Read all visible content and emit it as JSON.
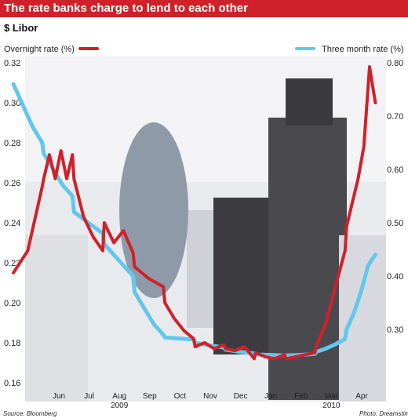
{
  "header": {
    "title": "The rate banks charge to lend to each other",
    "subtitle": "$ Libor"
  },
  "footer": {
    "source": "Source: Bloomberg",
    "photo_credit": "Photo: Dreamstime"
  },
  "colors": {
    "accent": "#d0212a",
    "overnight": "#d0212a",
    "three_month": "#63c7ec",
    "background_photo": "#e6e7ea"
  },
  "chart_data": {
    "type": "line",
    "title": "The rate banks charge to lend to each other",
    "subtitle": "$ Libor",
    "x_ticks": [
      "Jun",
      "Jul",
      "Aug",
      "Sep",
      "Oct",
      "Nov",
      "Dec",
      "Jan",
      "Feb",
      "Mar",
      "Apr"
    ],
    "year_labels": [
      {
        "label": "2009",
        "under": "Aug"
      },
      {
        "label": "2010",
        "under": "Mar"
      }
    ],
    "grid": false,
    "series": [
      {
        "name": "Overnight rate (%)",
        "axis": "left",
        "ylim": [
          0.16,
          0.32
        ],
        "y_ticks": [
          0.16,
          0.18,
          0.2,
          0.22,
          0.24,
          0.26,
          0.28,
          0.3,
          0.32
        ],
        "legend_position": "top-left",
        "points": [
          [
            "May",
            0.215
          ],
          [
            "May",
            0.226
          ],
          [
            "May",
            0.258
          ],
          [
            "Jun",
            0.262
          ],
          [
            "Jun",
            0.274
          ],
          [
            "Jun",
            0.262
          ],
          [
            "Jun",
            0.276
          ],
          [
            "Jun",
            0.262
          ],
          [
            "Jun",
            0.274
          ],
          [
            "Jul",
            0.262
          ],
          [
            "Jul",
            0.243
          ],
          [
            "Jul",
            0.233
          ],
          [
            "Jul",
            0.226
          ],
          [
            "Aug",
            0.24
          ],
          [
            "Aug",
            0.23
          ],
          [
            "Aug",
            0.236
          ],
          [
            "Aug",
            0.225
          ],
          [
            "Sep",
            0.218
          ],
          [
            "Sep",
            0.212
          ],
          [
            "Sep",
            0.208
          ],
          [
            "Oct",
            0.2
          ],
          [
            "Oct",
            0.192
          ],
          [
            "Oct",
            0.186
          ],
          [
            "Oct",
            0.182
          ],
          [
            "Nov",
            0.178
          ],
          [
            "Nov",
            0.18
          ],
          [
            "Nov",
            0.177
          ],
          [
            "Nov",
            0.179
          ],
          [
            "Dec",
            0.177
          ],
          [
            "Dec",
            0.176
          ],
          [
            "Dec",
            0.178
          ],
          [
            "Dec",
            0.172
          ],
          [
            "Jan",
            0.175
          ],
          [
            "Jan",
            0.173
          ],
          [
            "Jan",
            0.172
          ],
          [
            "Jan",
            0.174
          ],
          [
            "Feb",
            0.172
          ],
          [
            "Feb",
            0.173
          ],
          [
            "Feb",
            0.174
          ],
          [
            "Feb",
            0.175
          ],
          [
            "Mar",
            0.178
          ],
          [
            "Mar",
            0.19
          ],
          [
            "Mar",
            0.208
          ],
          [
            "Mar",
            0.226
          ],
          [
            "Apr",
            0.238
          ],
          [
            "Apr",
            0.25
          ],
          [
            "Apr",
            0.262
          ],
          [
            "Apr",
            0.278
          ],
          [
            "Apr",
            0.318
          ],
          [
            "Apr",
            0.3
          ]
        ]
      },
      {
        "name": "Three month rate (%)",
        "axis": "right",
        "ylim": [
          0.2,
          0.8
        ],
        "y_ticks": [
          0.3,
          0.4,
          0.5,
          0.6,
          0.7,
          0.8
        ],
        "legend_position": "top-right",
        "points": [
          [
            "May",
            0.76
          ],
          [
            "May",
            0.72
          ],
          [
            "May",
            0.68
          ],
          [
            "May",
            0.65
          ],
          [
            "Jun",
            0.63
          ],
          [
            "Jun",
            0.6
          ],
          [
            "Jun",
            0.57
          ],
          [
            "Jun",
            0.55
          ],
          [
            "Jul",
            0.52
          ],
          [
            "Jul",
            0.5
          ],
          [
            "Jul",
            0.48
          ],
          [
            "Aug",
            0.46
          ],
          [
            "Aug",
            0.44
          ],
          [
            "Aug",
            0.42
          ],
          [
            "Aug",
            0.4
          ],
          [
            "Sep",
            0.37
          ],
          [
            "Sep",
            0.34
          ],
          [
            "Sep",
            0.31
          ],
          [
            "Sep",
            0.29
          ],
          [
            "Oct",
            0.285
          ],
          [
            "Oct",
            0.283
          ],
          [
            "Oct",
            0.281
          ],
          [
            "Nov",
            0.275
          ],
          [
            "Nov",
            0.27
          ],
          [
            "Nov",
            0.266
          ],
          [
            "Dec",
            0.262
          ],
          [
            "Dec",
            0.258
          ],
          [
            "Dec",
            0.255
          ],
          [
            "Jan",
            0.253
          ],
          [
            "Jan",
            0.252
          ],
          [
            "Jan",
            0.251
          ],
          [
            "Feb",
            0.251
          ],
          [
            "Feb",
            0.252
          ],
          [
            "Feb",
            0.254
          ],
          [
            "Mar",
            0.258
          ],
          [
            "Mar",
            0.264
          ],
          [
            "Mar",
            0.272
          ],
          [
            "Mar",
            0.282
          ],
          [
            "Apr",
            0.3
          ],
          [
            "Apr",
            0.33
          ],
          [
            "Apr",
            0.37
          ],
          [
            "Apr",
            0.42
          ],
          [
            "Apr",
            0.44
          ]
        ]
      }
    ]
  }
}
